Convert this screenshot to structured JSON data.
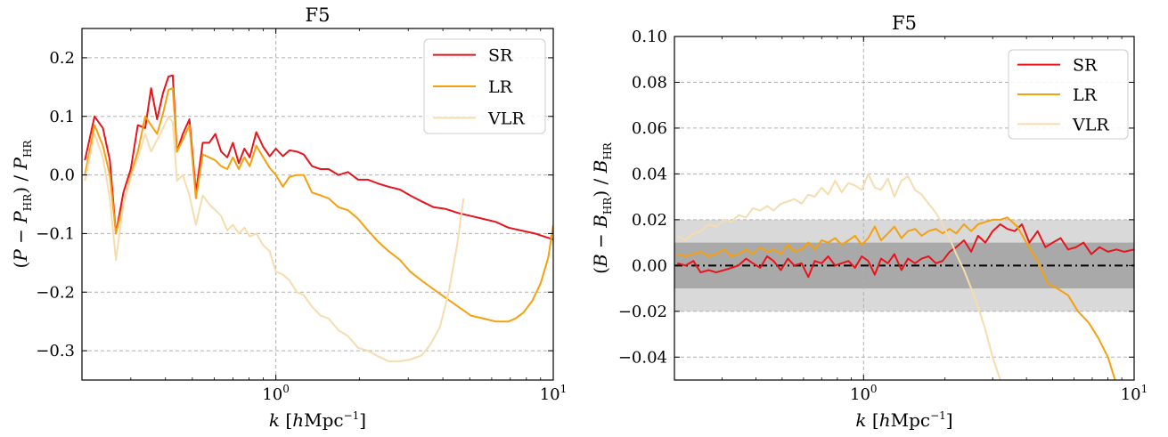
{
  "chart_data": [
    {
      "type": "line",
      "title": "F5",
      "xlabel": "k [hMpc⁻¹]",
      "ylabel": "(P − P_HR) / P_HR",
      "xscale": "log",
      "xlim": [
        0.2,
        10
      ],
      "ylim": [
        -0.35,
        0.25
      ],
      "grid": "dashed, major only",
      "legend": "top-right",
      "xtick_labels": [
        {
          "base": "10",
          "exp": "0",
          "value": 1
        },
        {
          "base": "10",
          "exp": "1",
          "value": 10
        }
      ],
      "yticks": [
        0.2,
        0.1,
        0.0,
        -0.1,
        -0.2,
        -0.3
      ],
      "ytick_labels": [
        "0.2",
        "0.1",
        "0.0",
        "−0.1",
        "−0.2",
        "−0.3"
      ],
      "series": [
        {
          "name": "SR",
          "color": "#e8141c",
          "x": [
            0.205,
            0.222,
            0.238,
            0.252,
            0.265,
            0.282,
            0.3,
            0.318,
            0.338,
            0.355,
            0.373,
            0.392,
            0.41,
            0.425,
            0.44,
            0.462,
            0.488,
            0.515,
            0.545,
            0.575,
            0.605,
            0.635,
            0.668,
            0.7,
            0.735,
            0.77,
            0.805,
            0.85,
            0.9,
            0.95,
            1.0,
            1.06,
            1.12,
            1.19,
            1.26,
            1.35,
            1.45,
            1.55,
            1.68,
            1.82,
            1.98,
            2.15,
            2.35,
            2.55,
            2.8,
            3.05,
            3.35,
            3.7,
            4.1,
            4.55,
            5.05,
            5.6,
            6.2,
            6.9,
            7.7,
            8.6,
            10.0
          ],
          "y": [
            0.025,
            0.1,
            0.08,
            0.025,
            -0.1,
            -0.03,
            0.01,
            0.085,
            0.08,
            0.148,
            0.095,
            0.14,
            0.168,
            0.17,
            0.04,
            0.07,
            0.095,
            -0.03,
            0.055,
            0.055,
            0.07,
            0.04,
            0.03,
            0.055,
            0.02,
            0.045,
            0.03,
            0.073,
            0.048,
            0.032,
            0.045,
            0.032,
            0.042,
            0.04,
            0.035,
            0.015,
            0.01,
            0.01,
            0.0,
            0.005,
            -0.008,
            -0.008,
            -0.015,
            -0.02,
            -0.025,
            -0.035,
            -0.045,
            -0.055,
            -0.058,
            -0.065,
            -0.07,
            -0.075,
            -0.08,
            -0.09,
            -0.095,
            -0.1,
            -0.11
          ]
        },
        {
          "name": "LR",
          "color": "#f5a00f",
          "x": [
            0.205,
            0.222,
            0.238,
            0.252,
            0.265,
            0.282,
            0.3,
            0.318,
            0.338,
            0.355,
            0.373,
            0.392,
            0.41,
            0.425,
            0.44,
            0.462,
            0.488,
            0.515,
            0.545,
            0.575,
            0.605,
            0.635,
            0.668,
            0.7,
            0.735,
            0.77,
            0.805,
            0.85,
            0.9,
            0.95,
            1.0,
            1.06,
            1.12,
            1.19,
            1.26,
            1.35,
            1.45,
            1.55,
            1.68,
            1.82,
            1.98,
            2.15,
            2.35,
            2.55,
            2.8,
            3.05,
            3.35,
            3.7,
            4.1,
            4.55,
            5.05,
            5.6,
            6.2,
            6.9,
            7.3,
            7.8,
            8.4,
            9.0,
            9.6,
            10.0
          ],
          "y": [
            0.0,
            0.085,
            0.05,
            0.0,
            -0.1,
            -0.05,
            0.0,
            0.04,
            0.1,
            0.085,
            0.07,
            0.105,
            0.145,
            0.148,
            0.04,
            0.06,
            0.085,
            -0.04,
            0.035,
            0.03,
            0.025,
            0.015,
            0.01,
            0.03,
            0.01,
            0.03,
            0.015,
            0.05,
            0.03,
            0.012,
            0.0,
            -0.02,
            -0.003,
            0.0,
            0.0,
            -0.03,
            -0.035,
            -0.04,
            -0.055,
            -0.06,
            -0.075,
            -0.095,
            -0.115,
            -0.13,
            -0.145,
            -0.165,
            -0.18,
            -0.195,
            -0.21,
            -0.225,
            -0.24,
            -0.245,
            -0.25,
            -0.25,
            -0.245,
            -0.235,
            -0.215,
            -0.185,
            -0.14,
            -0.085
          ]
        },
        {
          "name": "VLR",
          "color": "#f6dcae",
          "x": [
            0.205,
            0.222,
            0.238,
            0.252,
            0.265,
            0.282,
            0.3,
            0.318,
            0.338,
            0.355,
            0.373,
            0.392,
            0.41,
            0.425,
            0.44,
            0.462,
            0.488,
            0.515,
            0.545,
            0.575,
            0.605,
            0.635,
            0.668,
            0.7,
            0.735,
            0.77,
            0.805,
            0.85,
            0.9,
            0.95,
            1.0,
            1.06,
            1.12,
            1.19,
            1.26,
            1.35,
            1.45,
            1.55,
            1.68,
            1.82,
            1.98,
            2.15,
            2.35,
            2.55,
            2.8,
            3.05,
            3.35,
            3.6,
            3.9,
            4.2,
            4.5,
            4.75
          ],
          "y": [
            -0.01,
            0.07,
            0.03,
            -0.04,
            -0.145,
            -0.05,
            -0.005,
            0.03,
            0.07,
            0.04,
            0.06,
            0.08,
            0.1,
            0.09,
            -0.01,
            0.0,
            -0.035,
            -0.085,
            -0.035,
            -0.05,
            -0.06,
            -0.07,
            -0.095,
            -0.085,
            -0.1,
            -0.09,
            -0.105,
            -0.1,
            -0.12,
            -0.13,
            -0.165,
            -0.17,
            -0.18,
            -0.2,
            -0.205,
            -0.225,
            -0.24,
            -0.245,
            -0.265,
            -0.275,
            -0.295,
            -0.3,
            -0.31,
            -0.318,
            -0.318,
            -0.315,
            -0.308,
            -0.29,
            -0.26,
            -0.2,
            -0.12,
            -0.04
          ]
        }
      ]
    },
    {
      "type": "line",
      "title": "F5",
      "xlabel": "k [hMpc⁻¹]",
      "ylabel": "(B − B_HR) / B_HR",
      "xscale": "log",
      "xlim": [
        0.2,
        10
      ],
      "ylim": [
        -0.05,
        0.1
      ],
      "grid": "dashed, major only",
      "legend": "top-right",
      "bands": [
        {
          "ymin": -0.02,
          "ymax": 0.02,
          "color": "#d9d9d9"
        },
        {
          "ymin": -0.01,
          "ymax": 0.01,
          "color": "#a9a9a9"
        }
      ],
      "reference_line": {
        "y": 0.0,
        "style": "dash-dot",
        "color": "#000000"
      },
      "xtick_labels": [
        {
          "base": "10",
          "exp": "0",
          "value": 1
        },
        {
          "base": "10",
          "exp": "1",
          "value": 10
        }
      ],
      "yticks": [
        0.1,
        0.08,
        0.06,
        0.04,
        0.02,
        0.0,
        -0.02,
        -0.04
      ],
      "ytick_labels": [
        "0.10",
        "0.08",
        "0.06",
        "0.04",
        "0.02",
        "0.00",
        "−0.02",
        "−0.04"
      ],
      "series": [
        {
          "name": "SR",
          "color": "#e8141c",
          "x": [
            0.205,
            0.22,
            0.235,
            0.25,
            0.268,
            0.285,
            0.305,
            0.325,
            0.345,
            0.368,
            0.39,
            0.415,
            0.44,
            0.465,
            0.495,
            0.525,
            0.555,
            0.59,
            0.625,
            0.66,
            0.7,
            0.74,
            0.785,
            0.83,
            0.88,
            0.93,
            0.985,
            1.04,
            1.1,
            1.16,
            1.23,
            1.3,
            1.38,
            1.46,
            1.55,
            1.64,
            1.74,
            1.85,
            1.96,
            2.08,
            2.2,
            2.35,
            2.5,
            2.65,
            2.82,
            3.0,
            3.2,
            3.4,
            3.62,
            3.85,
            4.1,
            4.4,
            4.7,
            5.0,
            5.35,
            5.7,
            6.1,
            6.5,
            6.95,
            7.45,
            8.0,
            8.6,
            9.2,
            10.0
          ],
          "y": [
            0.001,
            0.0,
            0.002,
            -0.003,
            -0.002,
            -0.003,
            -0.002,
            -0.001,
            0.0,
            0.003,
            0.001,
            -0.001,
            0.004,
            0.002,
            -0.002,
            0.003,
            0.0,
            0.001,
            -0.005,
            0.002,
            0.001,
            0.004,
            0.0,
            0.001,
            0.002,
            -0.001,
            0.004,
            0.002,
            -0.004,
            0.003,
            0.001,
            0.005,
            -0.002,
            0.003,
            0.001,
            0.003,
            0.004,
            0.001,
            0.002,
            0.006,
            0.008,
            0.011,
            0.006,
            0.013,
            0.01,
            0.015,
            0.018,
            0.016,
            0.015,
            0.018,
            0.01,
            0.015,
            0.008,
            0.01,
            0.012,
            0.007,
            0.008,
            0.01,
            0.005,
            0.008,
            0.006,
            0.007,
            0.006,
            0.007
          ]
        },
        {
          "name": "LR",
          "color": "#f5a00f",
          "x": [
            0.205,
            0.22,
            0.235,
            0.25,
            0.268,
            0.285,
            0.305,
            0.325,
            0.345,
            0.368,
            0.39,
            0.415,
            0.44,
            0.465,
            0.495,
            0.525,
            0.555,
            0.59,
            0.625,
            0.66,
            0.7,
            0.74,
            0.785,
            0.83,
            0.88,
            0.93,
            0.985,
            1.04,
            1.1,
            1.16,
            1.23,
            1.3,
            1.38,
            1.46,
            1.55,
            1.64,
            1.74,
            1.85,
            1.96,
            2.08,
            2.2,
            2.35,
            2.5,
            2.65,
            2.82,
            3.0,
            3.2,
            3.4,
            3.7,
            4.0,
            4.4,
            4.8,
            5.2,
            5.7,
            6.2,
            6.8,
            7.4,
            8.0,
            8.5
          ],
          "y": [
            0.005,
            0.004,
            0.005,
            0.006,
            0.004,
            0.005,
            0.007,
            0.004,
            0.005,
            0.007,
            0.005,
            0.008,
            0.006,
            0.007,
            0.005,
            0.009,
            0.006,
            0.007,
            0.01,
            0.007,
            0.011,
            0.01,
            0.012,
            0.009,
            0.011,
            0.013,
            0.009,
            0.012,
            0.017,
            0.011,
            0.014,
            0.017,
            0.012,
            0.015,
            0.016,
            0.013,
            0.015,
            0.016,
            0.014,
            0.016,
            0.014,
            0.018,
            0.015,
            0.018,
            0.019,
            0.02,
            0.02,
            0.021,
            0.017,
            0.01,
            0.002,
            -0.008,
            -0.01,
            -0.013,
            -0.02,
            -0.025,
            -0.032,
            -0.04,
            -0.05
          ]
        },
        {
          "name": "VLR",
          "color": "#f6dcae",
          "x": [
            0.205,
            0.22,
            0.235,
            0.25,
            0.268,
            0.285,
            0.305,
            0.325,
            0.345,
            0.368,
            0.39,
            0.415,
            0.44,
            0.465,
            0.495,
            0.525,
            0.555,
            0.59,
            0.625,
            0.66,
            0.7,
            0.74,
            0.785,
            0.83,
            0.88,
            0.93,
            0.985,
            1.04,
            1.1,
            1.16,
            1.23,
            1.3,
            1.38,
            1.46,
            1.55,
            1.64,
            1.74,
            1.85,
            1.96,
            2.08,
            2.2,
            2.35,
            2.5,
            2.65,
            2.82,
            3.0,
            3.2
          ],
          "y": [
            0.013,
            0.011,
            0.014,
            0.015,
            0.018,
            0.017,
            0.02,
            0.019,
            0.022,
            0.021,
            0.025,
            0.024,
            0.026,
            0.024,
            0.027,
            0.028,
            0.029,
            0.027,
            0.031,
            0.03,
            0.034,
            0.031,
            0.037,
            0.032,
            0.036,
            0.035,
            0.033,
            0.04,
            0.034,
            0.033,
            0.038,
            0.03,
            0.037,
            0.039,
            0.033,
            0.031,
            0.027,
            0.023,
            0.018,
            0.012,
            0.005,
            -0.002,
            -0.01,
            -0.018,
            -0.028,
            -0.04,
            -0.05
          ]
        }
      ]
    }
  ]
}
